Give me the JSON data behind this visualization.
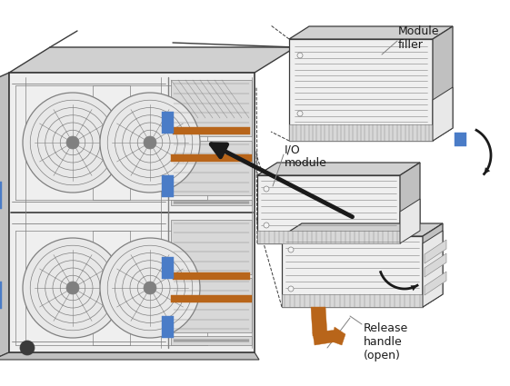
{
  "background_color": "#ffffff",
  "figure_width": 5.61,
  "figure_height": 4.25,
  "dpi": 100,
  "colors": {
    "light_gray": "#e8e8e8",
    "mid_gray": "#c0c0c0",
    "dark_gray": "#808080",
    "very_dark": "#3a3a3a",
    "white": "#f4f4f4",
    "off_white": "#efefef",
    "brown_orange": "#b8651a",
    "blue": "#4a7cc7",
    "black": "#1a1a1a",
    "hatch_face": "#d8d8d8",
    "inner_dark": "#555555",
    "top_face": "#d0d0d0"
  },
  "labels": {
    "module_filler": "Module\nfiller",
    "io_module": "I/O\nmodule",
    "release_handle": "Release\nhandle\n(open)"
  },
  "label_fontsize": 9
}
